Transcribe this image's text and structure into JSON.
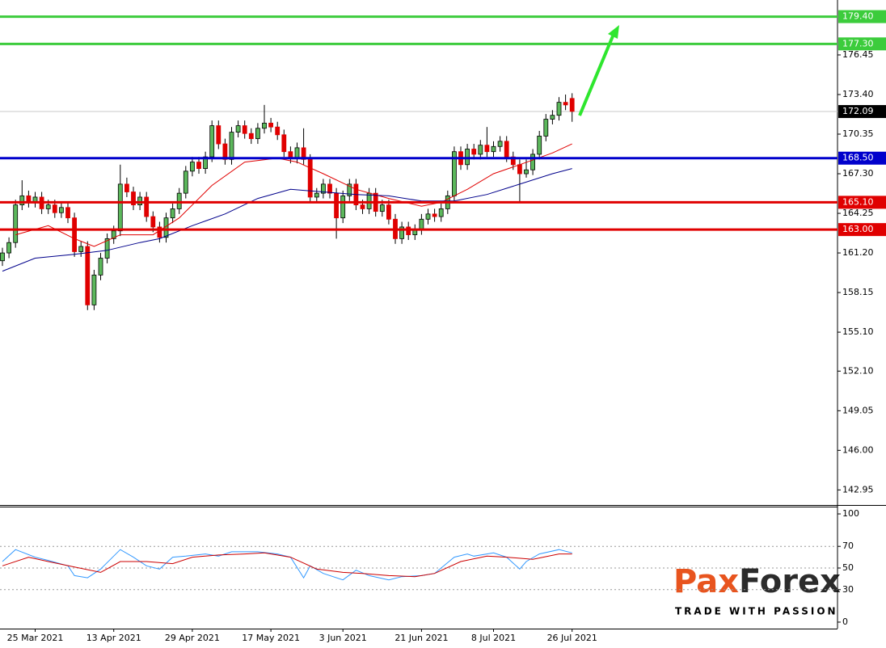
{
  "chart_data": [
    {
      "type": "candlestick",
      "categories": [
        null,
        null,
        null,
        null,
        null,
        "25 Mar 2021",
        null,
        null,
        null,
        null,
        null,
        null,
        null,
        null,
        null,
        null,
        null,
        "13 Apr 2021",
        null,
        null,
        null,
        null,
        null,
        null,
        null,
        null,
        null,
        null,
        null,
        "29 Apr 2021",
        null,
        null,
        null,
        null,
        null,
        null,
        null,
        null,
        null,
        null,
        null,
        "17 May 2021",
        null,
        null,
        null,
        null,
        null,
        null,
        null,
        null,
        null,
        null,
        "3 Jun 2021",
        null,
        null,
        null,
        null,
        null,
        null,
        null,
        null,
        null,
        null,
        null,
        "21 Jun 2021",
        null,
        null,
        null,
        null,
        null,
        null,
        null,
        null,
        null,
        null,
        "8 Jul 2021",
        null,
        null,
        null,
        null,
        null,
        null,
        null,
        null,
        null,
        null,
        null,
        "26 Jul 2021"
      ],
      "open": [
        160.6,
        161.2,
        162.0,
        164.9,
        165.6,
        165.1,
        165.5,
        164.6,
        164.9,
        164.3,
        164.7,
        163.9,
        161.3,
        161.7,
        157.2,
        159.5,
        160.8,
        162.3,
        162.9,
        166.5,
        165.9,
        164.9,
        165.5,
        164.0,
        163.2,
        162.4,
        163.9,
        164.6,
        165.8,
        167.5,
        168.2,
        167.7,
        168.6,
        171.0,
        169.6,
        168.4,
        170.5,
        171.0,
        170.4,
        170.0,
        170.8,
        171.2,
        170.9,
        170.3,
        169.0,
        168.5,
        169.3,
        168.4,
        165.5,
        165.8,
        166.5,
        165.8,
        163.9,
        165.6,
        166.5,
        164.9,
        164.6,
        165.8,
        164.4,
        164.9,
        163.8,
        162.3,
        163.2,
        162.6,
        163.0,
        163.8,
        164.2,
        164.0,
        164.6,
        165.6,
        169.0,
        168.0,
        169.2,
        168.8,
        169.5,
        169.0,
        169.4,
        169.8,
        168.6,
        168.0,
        167.3,
        167.6,
        168.8,
        170.2,
        171.5,
        171.8,
        172.8,
        173.1
      ],
      "high": [
        161.6,
        162.4,
        165.3,
        166.8,
        166.0,
        165.9,
        165.9,
        165.3,
        165.3,
        165.1,
        165.1,
        164.3,
        162.1,
        162.1,
        159.9,
        161.2,
        162.7,
        163.3,
        168.0,
        167.0,
        166.3,
        165.9,
        165.9,
        164.4,
        163.6,
        164.3,
        165.0,
        166.2,
        167.9,
        168.6,
        168.6,
        169.0,
        171.4,
        171.4,
        170.0,
        170.9,
        171.4,
        171.4,
        170.8,
        171.2,
        172.6,
        171.6,
        171.3,
        170.7,
        169.4,
        169.7,
        170.8,
        168.8,
        166.2,
        166.9,
        166.9,
        166.2,
        166.0,
        166.9,
        166.9,
        165.3,
        166.2,
        166.2,
        165.3,
        165.3,
        164.2,
        163.6,
        163.6,
        163.4,
        164.2,
        164.6,
        164.6,
        165.0,
        166.0,
        169.4,
        169.4,
        169.6,
        169.6,
        169.9,
        170.9,
        169.8,
        170.2,
        170.2,
        169.0,
        168.4,
        168.4,
        169.2,
        170.6,
        171.9,
        172.2,
        173.2,
        173.4,
        173.5
      ],
      "low": [
        160.2,
        160.8,
        161.6,
        164.5,
        164.7,
        164.7,
        164.2,
        164.2,
        163.9,
        163.9,
        163.5,
        160.9,
        160.9,
        156.8,
        156.8,
        159.1,
        160.4,
        161.9,
        162.5,
        165.5,
        164.5,
        164.5,
        163.6,
        162.8,
        162.0,
        162.0,
        163.5,
        164.2,
        165.4,
        167.1,
        167.3,
        167.3,
        168.2,
        169.2,
        168.0,
        168.0,
        170.1,
        170.0,
        169.6,
        169.6,
        170.4,
        170.5,
        169.9,
        168.6,
        168.1,
        168.1,
        168.0,
        165.1,
        165.1,
        165.4,
        165.4,
        162.3,
        163.5,
        165.2,
        164.5,
        164.2,
        164.2,
        164.0,
        164.0,
        163.4,
        161.9,
        161.9,
        162.2,
        162.2,
        162.6,
        163.4,
        163.6,
        163.6,
        164.2,
        165.2,
        167.6,
        167.6,
        168.4,
        168.4,
        168.6,
        168.6,
        169.0,
        168.2,
        167.6,
        165.1,
        167.0,
        167.2,
        168.4,
        169.8,
        171.1,
        171.4,
        172.2,
        171.3
      ],
      "close": [
        161.2,
        162.0,
        164.9,
        165.6,
        165.1,
        165.5,
        164.6,
        164.9,
        164.3,
        164.7,
        163.9,
        161.3,
        161.7,
        157.2,
        159.5,
        160.8,
        162.3,
        162.9,
        166.5,
        165.9,
        164.9,
        165.5,
        164.0,
        163.2,
        162.4,
        163.9,
        164.6,
        165.8,
        167.5,
        168.2,
        167.7,
        168.6,
        171.0,
        169.6,
        168.4,
        170.5,
        171.0,
        170.4,
        170.0,
        170.8,
        171.2,
        170.9,
        170.3,
        169.0,
        168.5,
        169.3,
        168.4,
        165.5,
        165.8,
        166.5,
        165.8,
        163.9,
        165.6,
        166.5,
        164.9,
        164.6,
        165.8,
        164.4,
        164.9,
        163.8,
        162.3,
        163.2,
        162.6,
        163.0,
        163.8,
        164.2,
        164.0,
        164.6,
        165.6,
        169.0,
        168.0,
        169.2,
        168.8,
        169.5,
        169.0,
        169.4,
        169.8,
        168.6,
        168.0,
        167.3,
        167.6,
        168.8,
        170.2,
        171.5,
        171.8,
        172.8,
        172.6,
        172.1
      ],
      "up_color": "#5cb85c",
      "down_color": "#e00000",
      "overlays": [
        {
          "color": "#e00000",
          "x": [
            2,
            7,
            11,
            14,
            18,
            23,
            27,
            32,
            37,
            42,
            45,
            49,
            54,
            59,
            64,
            67,
            71,
            75,
            79,
            84,
            87
          ],
          "values": [
            162.6,
            163.3,
            162.3,
            161.7,
            162.6,
            162.6,
            163.9,
            166.4,
            168.2,
            168.5,
            168.2,
            167.3,
            166.1,
            165.4,
            164.8,
            165.1,
            166.1,
            167.3,
            168.0,
            168.9,
            169.6
          ]
        },
        {
          "color": "#00008b",
          "x": [
            0,
            5,
            11,
            16,
            21,
            24,
            29,
            34,
            39,
            44,
            49,
            54,
            59,
            64,
            69,
            74,
            79,
            84,
            87
          ],
          "values": [
            159.8,
            160.8,
            161.1,
            161.4,
            162.0,
            162.3,
            163.3,
            164.2,
            165.4,
            166.1,
            165.9,
            165.7,
            165.6,
            165.2,
            165.2,
            165.7,
            166.5,
            167.3,
            167.7
          ]
        }
      ],
      "levels": [
        {
          "value": 179.4,
          "label": "179.40",
          "color": "#3ccc3c"
        },
        {
          "value": 177.3,
          "label": "177.30",
          "color": "#3ccc3c"
        },
        {
          "value": 168.5,
          "label": "168.50",
          "color": "#0000cc"
        },
        {
          "value": 165.1,
          "label": "165.10",
          "color": "#e00000"
        },
        {
          "value": 163,
          "label": "163.00",
          "color": "#e00000"
        }
      ],
      "last_price": 172.09,
      "xlim": [
        -0.37,
        127.53
      ],
      "ylim": [
        141.79,
        180.68
      ],
      "yticks": [
        176.45,
        {
          "value": 173.4,
          "label": "173.40"
        },
        170.35,
        {
          "value": 167.3,
          "label": "167.30"
        },
        164.25,
        {
          "value": 161.2,
          "label": "161.20"
        },
        158.15,
        {
          "value": 155.1,
          "label": "155.10"
        },
        {
          "value": 152.1,
          "label": "152.10"
        },
        149.05,
        {
          "value": 146,
          "label": "146.00"
        },
        142.95
      ],
      "watermark": {
        "brand_parts": [
          "Pax",
          "Forex"
        ],
        "tagline": "TRADE WITH PASSION"
      }
    },
    {
      "type": "line",
      "series": [
        {
          "color": "#3399ff",
          "x": [
            0,
            2,
            5,
            7,
            10,
            11,
            13,
            15,
            18,
            20,
            22,
            24,
            26,
            28,
            31,
            33,
            35,
            39,
            42,
            44,
            46,
            47,
            49,
            52,
            54,
            56,
            59,
            61,
            64,
            66,
            69,
            71,
            72,
            75,
            77,
            79,
            80,
            82,
            85,
            87
          ],
          "values": [
            56,
            67,
            60,
            57,
            52,
            43,
            41,
            49,
            67,
            60,
            52,
            49,
            60,
            61,
            63,
            61,
            65,
            65,
            63,
            60,
            41,
            52,
            45,
            39,
            48,
            43,
            39,
            42,
            43,
            45,
            60,
            63,
            61,
            64,
            60,
            49,
            56,
            63,
            67,
            64
          ]
        },
        {
          "color": "#cc0000",
          "x": [
            0,
            4,
            7,
            11,
            15,
            18,
            22,
            26,
            29,
            33,
            37,
            40,
            44,
            48,
            52,
            55,
            59,
            63,
            66,
            70,
            74,
            77,
            81,
            85,
            87
          ],
          "values": [
            52,
            60,
            56,
            51,
            46,
            56,
            56,
            54,
            60,
            62,
            63,
            64,
            60,
            49,
            46,
            45,
            43,
            42,
            45,
            56,
            61,
            60,
            58,
            63,
            63
          ]
        }
      ],
      "xlim": [
        -0.37,
        127.53
      ],
      "ylim": [
        -6,
        106
      ],
      "yticks": [
        0,
        30,
        50,
        70,
        100
      ],
      "dotted_levels": [
        30,
        50,
        70
      ]
    }
  ]
}
